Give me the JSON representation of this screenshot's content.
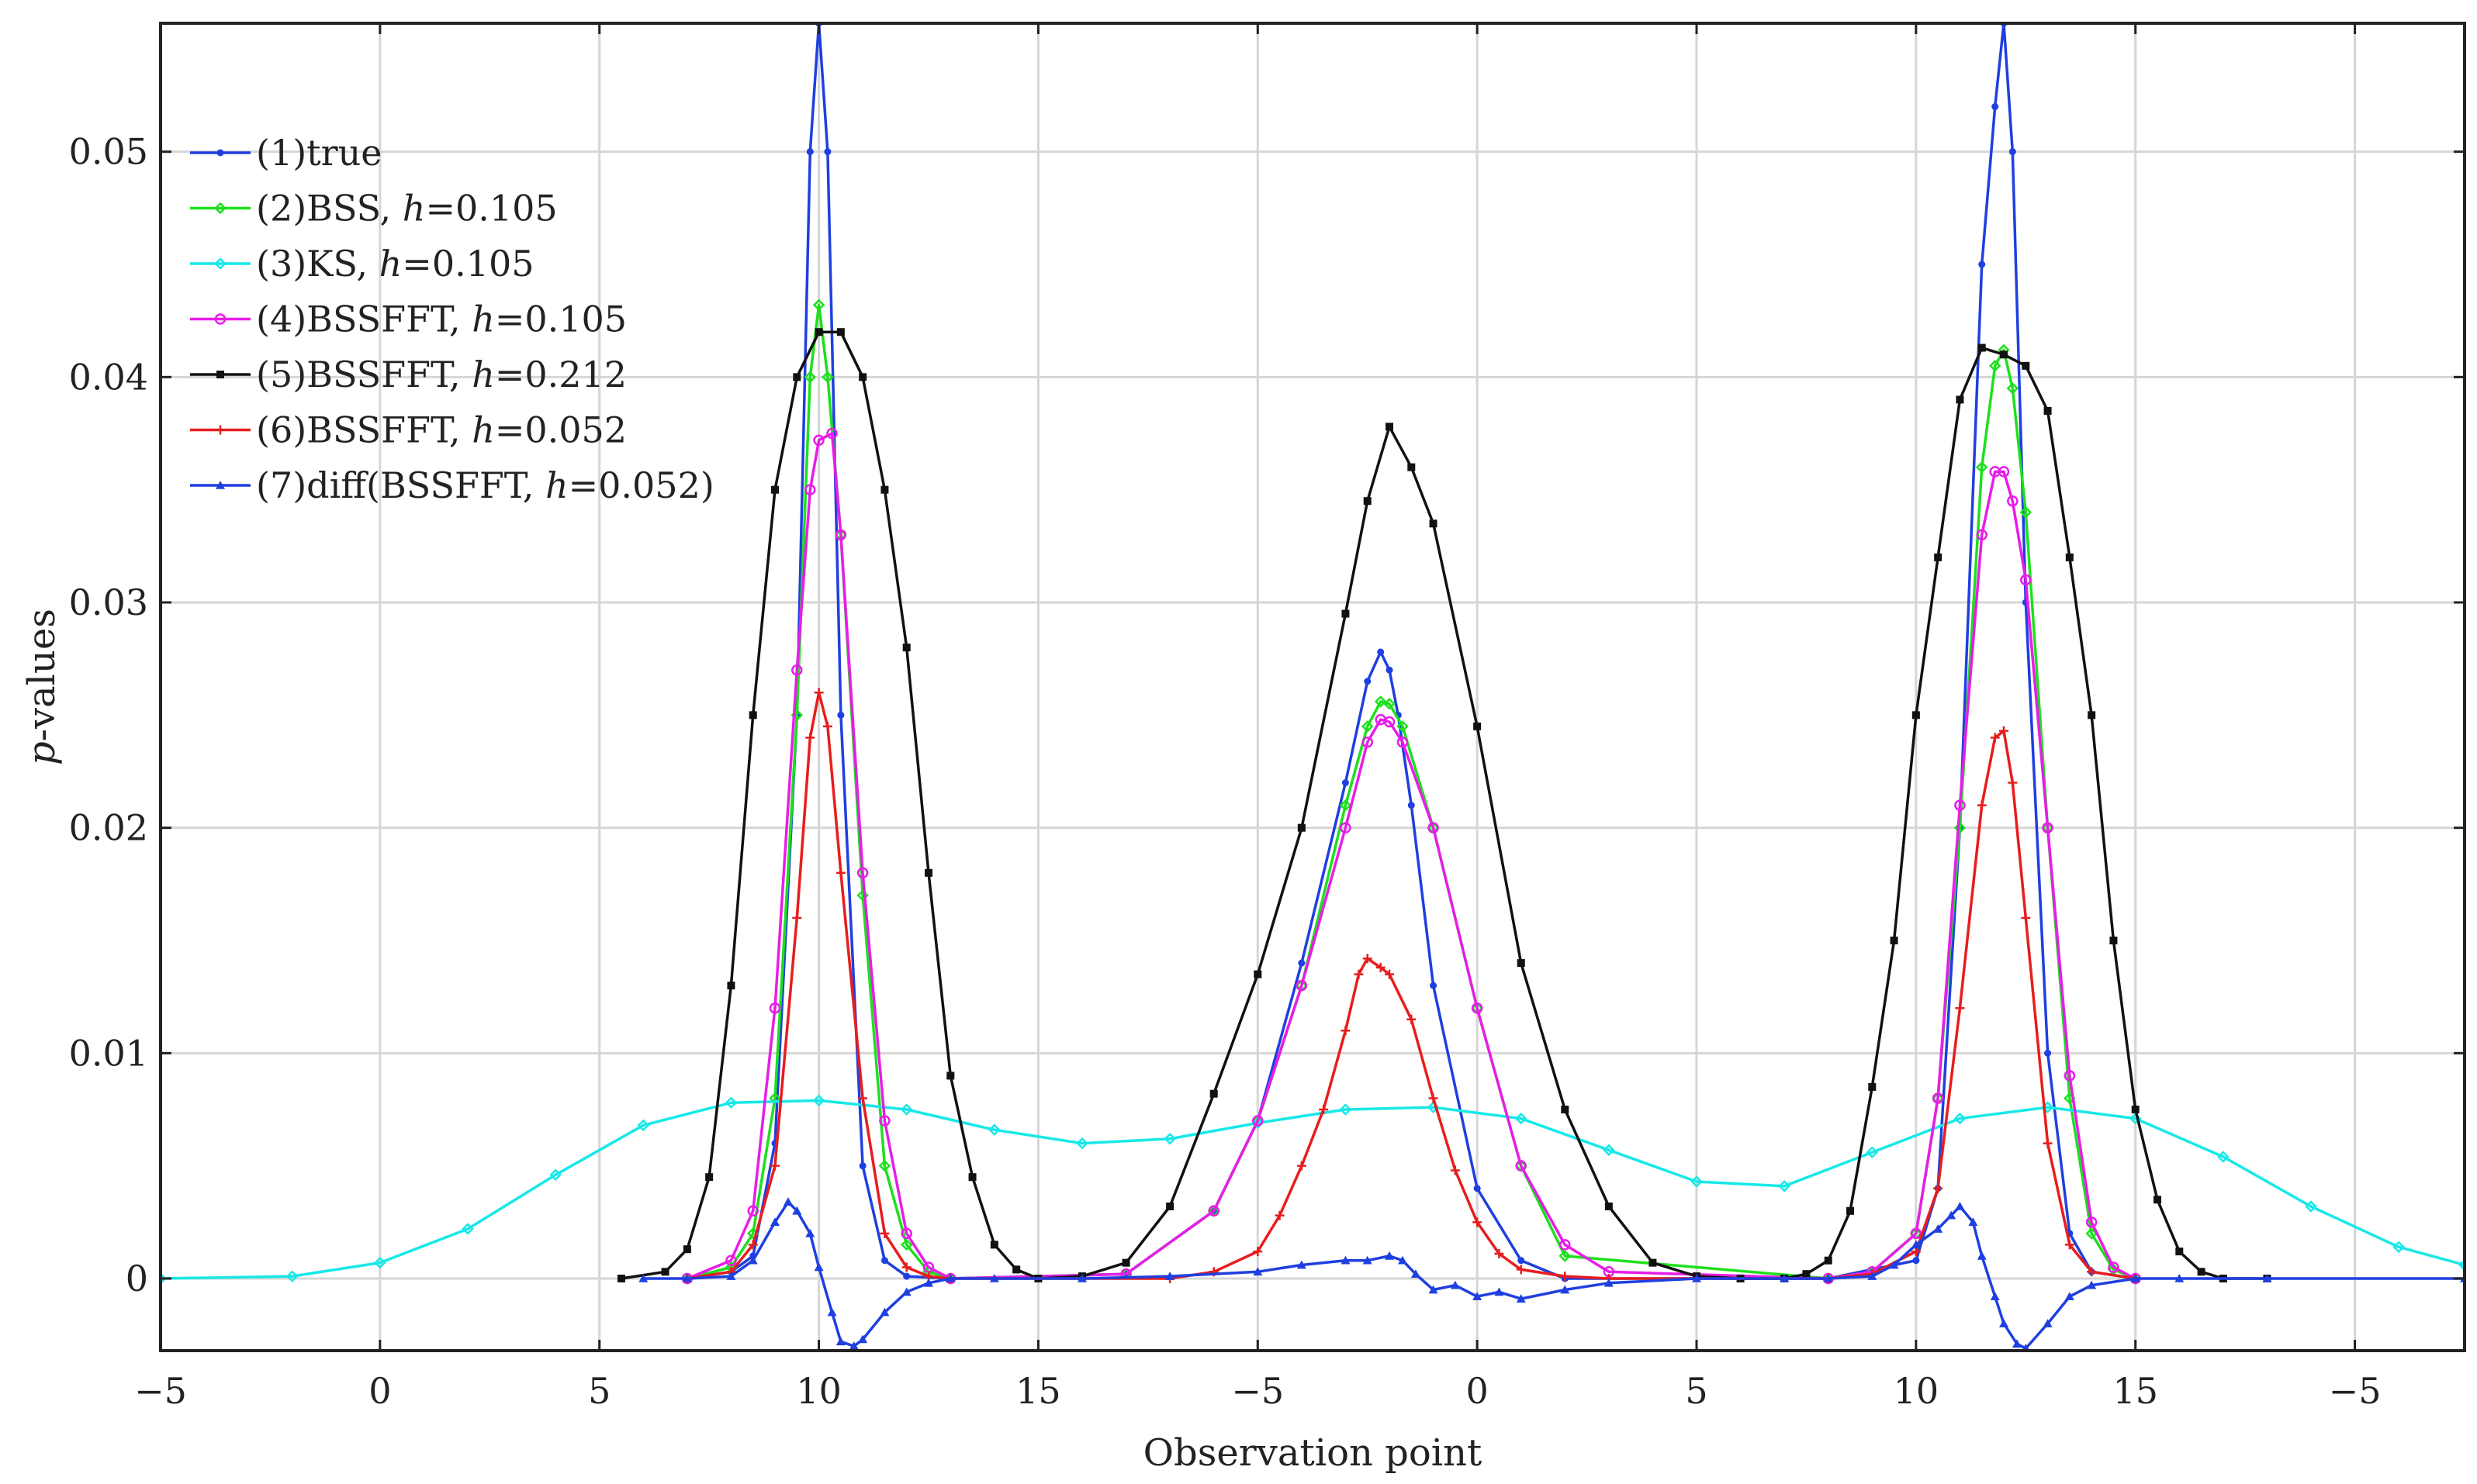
{
  "chart_data": {
    "type": "line",
    "xlabel": "Observation point",
    "ylabel": "p-values",
    "ylabel_parts": {
      "italic": "p",
      "rest": "-values"
    },
    "xlim": [
      -5,
      47.5
    ],
    "ylim": [
      -0.0032,
      0.0557
    ],
    "x_ticks": [
      {
        "value": -5,
        "label": "−5"
      },
      {
        "value": 0,
        "label": "0"
      },
      {
        "value": 5,
        "label": "5"
      },
      {
        "value": 10,
        "label": "10"
      },
      {
        "value": 15,
        "label": "15"
      },
      {
        "value": 20,
        "label": "−5"
      },
      {
        "value": 25,
        "label": "0"
      },
      {
        "value": 30,
        "label": "5"
      },
      {
        "value": 35,
        "label": "10"
      },
      {
        "value": 40,
        "label": "15"
      },
      {
        "value": 45,
        "label": "−5"
      }
    ],
    "y_ticks": [
      {
        "value": 0,
        "label": "0"
      },
      {
        "value": 0.01,
        "label": "0.01"
      },
      {
        "value": 0.02,
        "label": "0.02"
      },
      {
        "value": 0.03,
        "label": "0.03"
      },
      {
        "value": 0.04,
        "label": "0.04"
      },
      {
        "value": 0.05,
        "label": "0.05"
      }
    ],
    "grid": true,
    "legend_position": "top-left",
    "series": [
      {
        "name": "(1)true",
        "legend": {
          "pre": "(1)true",
          "h": "",
          "post": ""
        },
        "color": "#1f3fe0",
        "marker": "dot",
        "x": [
          7,
          8,
          8.5,
          9,
          9.5,
          9.8,
          10,
          10.2,
          10.5,
          11,
          11.5,
          12,
          13,
          17,
          19,
          20,
          21,
          22,
          22.5,
          22.8,
          23,
          23.2,
          23.5,
          24,
          25,
          26,
          27,
          33,
          35,
          35.5,
          36,
          36.5,
          36.8,
          37,
          37.2,
          37.5,
          38,
          38.5,
          39,
          40
        ],
        "y": [
          0,
          0.0003,
          0.001,
          0.006,
          0.025,
          0.05,
          0.0557,
          0.05,
          0.025,
          0.005,
          0.0008,
          0.0001,
          0,
          0.0002,
          0.003,
          0.007,
          0.014,
          0.022,
          0.0265,
          0.0278,
          0.027,
          0.025,
          0.021,
          0.013,
          0.004,
          0.0008,
          0,
          0,
          0.0008,
          0.004,
          0.02,
          0.045,
          0.052,
          0.0557,
          0.05,
          0.03,
          0.01,
          0.002,
          0.0003,
          0
        ]
      },
      {
        "name": "(2)BSS, h=0.105",
        "legend": {
          "pre": "(2)BSS, ",
          "h": "h",
          "post": "=0.105"
        },
        "color": "#1de01d",
        "marker": "diamond",
        "x": [
          7,
          8,
          8.5,
          9,
          9.5,
          9.8,
          10,
          10.2,
          10.5,
          11,
          11.5,
          12,
          12.5,
          13,
          17,
          19,
          20,
          21,
          22,
          22.5,
          22.8,
          23,
          23.3,
          24,
          25,
          26,
          27,
          33,
          34,
          35,
          35.5,
          36,
          36.5,
          36.8,
          37,
          37.2,
          37.5,
          38,
          38.5,
          39,
          39.5,
          40
        ],
        "y": [
          0,
          0.0005,
          0.002,
          0.008,
          0.025,
          0.04,
          0.0432,
          0.04,
          0.033,
          0.017,
          0.005,
          0.0015,
          0.0003,
          0,
          0.0002,
          0.003,
          0.007,
          0.013,
          0.021,
          0.0245,
          0.0256,
          0.0255,
          0.0245,
          0.02,
          0.012,
          0.005,
          0.001,
          0,
          0.0003,
          0.002,
          0.008,
          0.02,
          0.036,
          0.0405,
          0.0412,
          0.0395,
          0.034,
          0.02,
          0.008,
          0.002,
          0.0004,
          0
        ]
      },
      {
        "name": "(3)KS, h=0.105",
        "legend": {
          "pre": "(3)KS, ",
          "h": "h",
          "post": "=0.105"
        },
        "color": "#17e8e8",
        "marker": "diamond",
        "x": [
          -5,
          -2,
          0,
          2,
          4,
          6,
          8,
          10,
          12,
          14,
          16,
          18,
          20,
          22,
          24,
          26,
          28,
          30,
          32,
          34,
          36,
          38,
          40,
          42,
          44,
          46,
          47.5
        ],
        "y": [
          0,
          0.0001,
          0.0007,
          0.0022,
          0.0046,
          0.0068,
          0.0078,
          0.0079,
          0.0075,
          0.0066,
          0.006,
          0.0062,
          0.0069,
          0.0075,
          0.0076,
          0.0071,
          0.0057,
          0.0043,
          0.0041,
          0.0056,
          0.0071,
          0.0076,
          0.0071,
          0.0054,
          0.0032,
          0.0014,
          0.0006
        ]
      },
      {
        "name": "(4)BSSFFT, h=0.105",
        "legend": {
          "pre": "(4)BSSFFT, ",
          "h": "h",
          "post": "=0.105"
        },
        "color": "#e81de8",
        "marker": "circle",
        "x": [
          7,
          8,
          8.5,
          9,
          9.5,
          9.8,
          10,
          10.3,
          10.5,
          11,
          11.5,
          12,
          12.5,
          13,
          17,
          19,
          20,
          21,
          22,
          22.5,
          22.8,
          23,
          23.3,
          24,
          25,
          26,
          27,
          28,
          33,
          34,
          35,
          35.5,
          36,
          36.5,
          36.8,
          37,
          37.2,
          37.5,
          38,
          38.5,
          39,
          39.5,
          40
        ],
        "y": [
          0,
          0.0008,
          0.003,
          0.012,
          0.027,
          0.035,
          0.0372,
          0.0375,
          0.033,
          0.018,
          0.007,
          0.002,
          0.0005,
          0,
          0.0002,
          0.003,
          0.007,
          0.013,
          0.02,
          0.0238,
          0.0248,
          0.0247,
          0.0238,
          0.02,
          0.012,
          0.005,
          0.0015,
          0.0003,
          0,
          0.0003,
          0.002,
          0.008,
          0.021,
          0.033,
          0.0358,
          0.0358,
          0.0345,
          0.031,
          0.02,
          0.009,
          0.0025,
          0.0005,
          0
        ]
      },
      {
        "name": "(5)BSSFFT, h=0.212",
        "legend": {
          "pre": "(5)BSSFFT, ",
          "h": "h",
          "post": "=0.212"
        },
        "color": "#111111",
        "marker": "square",
        "x": [
          5.5,
          6.5,
          7,
          7.5,
          8,
          8.5,
          9,
          9.5,
          10,
          10.5,
          11,
          11.5,
          12,
          12.5,
          13,
          13.5,
          14,
          14.5,
          15,
          16,
          17,
          18,
          19,
          20,
          21,
          22,
          22.5,
          23,
          23.5,
          24,
          25,
          26,
          27,
          28,
          29,
          30,
          31,
          32,
          32.5,
          33,
          33.5,
          34,
          34.5,
          35,
          35.5,
          36,
          36.5,
          37,
          37.5,
          38,
          38.5,
          39,
          39.5,
          40,
          40.5,
          41,
          41.5,
          42,
          43
        ],
        "y": [
          0,
          0.0003,
          0.0013,
          0.0045,
          0.013,
          0.025,
          0.035,
          0.04,
          0.042,
          0.042,
          0.04,
          0.035,
          0.028,
          0.018,
          0.009,
          0.0045,
          0.0015,
          0.0004,
          0,
          0.0001,
          0.0007,
          0.0032,
          0.0082,
          0.0135,
          0.02,
          0.0295,
          0.0345,
          0.0378,
          0.036,
          0.0335,
          0.0245,
          0.014,
          0.0075,
          0.0032,
          0.0007,
          0.0001,
          0,
          0,
          0.0002,
          0.0008,
          0.003,
          0.0085,
          0.015,
          0.025,
          0.032,
          0.039,
          0.0413,
          0.041,
          0.0405,
          0.0385,
          0.032,
          0.025,
          0.015,
          0.0075,
          0.0035,
          0.0012,
          0.0003,
          0,
          0
        ]
      },
      {
        "name": "(6)BSSFFT, h=0.052",
        "legend": {
          "pre": "(6)BSSFFT, ",
          "h": "h",
          "post": "=0.052"
        },
        "color": "#e81d1d",
        "marker": "plus",
        "x": [
          7,
          8,
          8.5,
          9,
          9.5,
          9.8,
          10,
          10.2,
          10.5,
          11,
          11.5,
          12,
          12.5,
          13,
          18,
          19,
          20,
          20.5,
          21,
          21.5,
          22,
          22.3,
          22.5,
          22.8,
          23,
          23.5,
          24,
          24.5,
          25,
          25.5,
          26,
          27,
          28,
          33,
          34,
          35,
          35.5,
          36,
          36.5,
          36.8,
          37,
          37.2,
          37.5,
          38,
          38.5,
          39,
          40
        ],
        "y": [
          0,
          0.0003,
          0.0015,
          0.005,
          0.016,
          0.024,
          0.026,
          0.0245,
          0.018,
          0.008,
          0.002,
          0.0005,
          0.0001,
          0,
          0,
          0.0003,
          0.0012,
          0.0028,
          0.005,
          0.0075,
          0.011,
          0.0135,
          0.0142,
          0.0138,
          0.0135,
          0.0115,
          0.008,
          0.0048,
          0.0025,
          0.0011,
          0.0004,
          0.0001,
          0,
          0,
          0.0002,
          0.0012,
          0.004,
          0.012,
          0.021,
          0.024,
          0.0243,
          0.022,
          0.016,
          0.006,
          0.0015,
          0.0003,
          0
        ]
      },
      {
        "name": "(7)diff(BSSFFT, h=0.052)",
        "legend": {
          "pre": "(7)diff(BSSFFT, ",
          "h": "h",
          "post": "=0.052)"
        },
        "color": "#1f3fe0",
        "marker": "triangle",
        "x": [
          6,
          7,
          8,
          8.5,
          9,
          9.3,
          9.5,
          9.8,
          10,
          10.3,
          10.5,
          10.8,
          11,
          11.5,
          12,
          12.5,
          13,
          14,
          16,
          18,
          20,
          21,
          22,
          22.5,
          23,
          23.3,
          23.6,
          24,
          24.5,
          25,
          25.5,
          26,
          27,
          28,
          30,
          32,
          33,
          34,
          34.5,
          35,
          35.5,
          35.8,
          36,
          36.3,
          36.5,
          36.8,
          37,
          37.3,
          37.5,
          38,
          38.5,
          39,
          40,
          41,
          43,
          47.5
        ],
        "y": [
          0,
          0,
          0.0001,
          0.0008,
          0.0025,
          0.0034,
          0.003,
          0.002,
          0.0005,
          -0.0015,
          -0.0028,
          -0.003,
          -0.0027,
          -0.0015,
          -0.0006,
          -0.0002,
          0,
          0,
          0,
          0.0001,
          0.0003,
          0.0006,
          0.0008,
          0.0008,
          0.001,
          0.0008,
          0.0002,
          -0.0005,
          -0.0003,
          -0.0008,
          -0.0006,
          -0.0009,
          -0.0005,
          -0.0002,
          0,
          0,
          0,
          0.0001,
          0.0006,
          0.0015,
          0.0022,
          0.0028,
          0.0032,
          0.0025,
          0.001,
          -0.0008,
          -0.002,
          -0.0029,
          -0.0031,
          -0.002,
          -0.0008,
          -0.0003,
          0,
          0,
          0,
          0
        ]
      }
    ]
  }
}
